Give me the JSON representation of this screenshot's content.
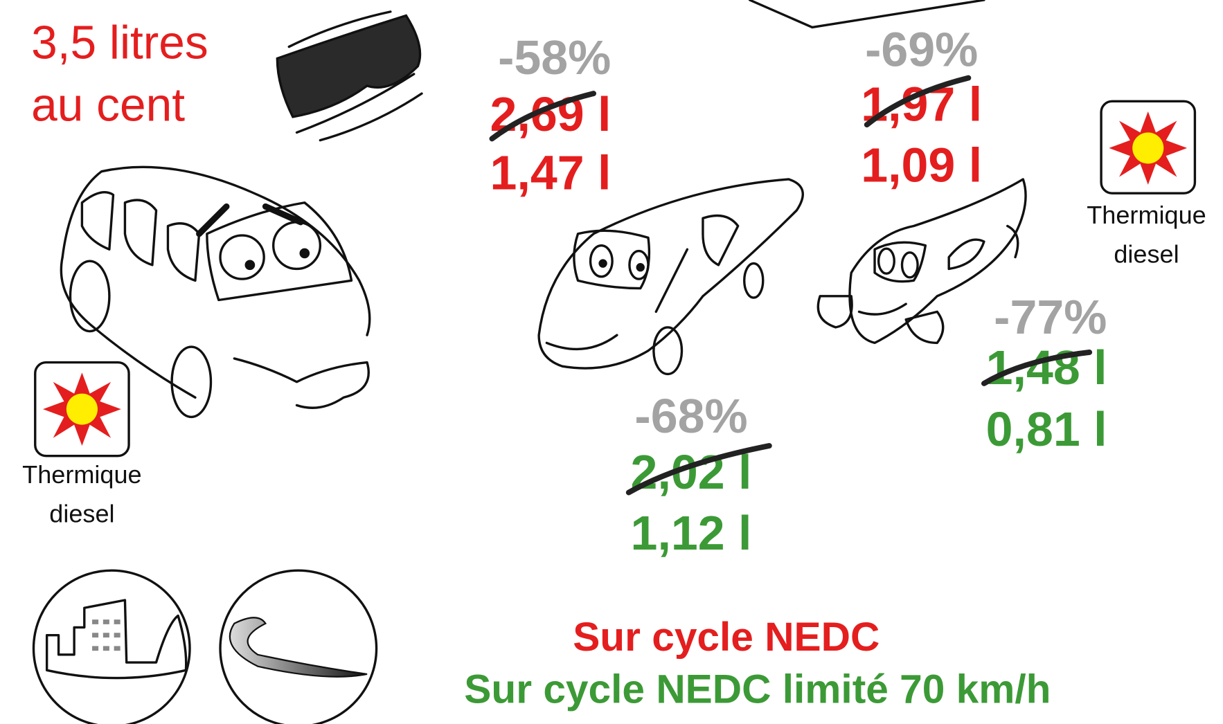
{
  "headline": {
    "line1": "3,5 litres",
    "line2": "au cent"
  },
  "badges": [
    {
      "line1": "Thermique",
      "line2": "diesel"
    },
    {
      "line1": "Thermique",
      "line2": "diesel"
    }
  ],
  "results": [
    {
      "reduction": "-58%",
      "before": "2,69 l",
      "after": "1,47 l"
    },
    {
      "reduction": "-69%",
      "before": "1,97 l",
      "after": "1,09 l"
    },
    {
      "reduction": "-68%",
      "before": "2,02 l",
      "after": "1,12 l"
    },
    {
      "reduction": "-77%",
      "before": "1,48 l",
      "after": "0,81 l"
    }
  ],
  "legend": {
    "red": "Sur cycle NEDC",
    "green": "Sur cycle NEDC limité 70 km/h"
  }
}
